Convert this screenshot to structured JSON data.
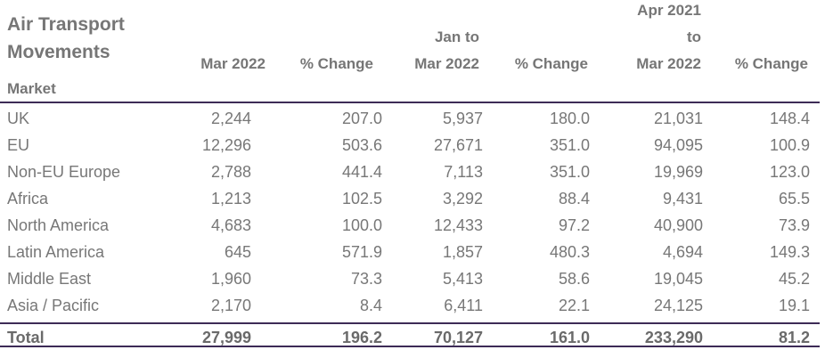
{
  "title_line1": "Air Transport",
  "title_line2": "Movements",
  "headers": {
    "mar2022": "Mar 2022",
    "pct1": "% Change",
    "jan_line1": "Jan to",
    "jan_line2": "Mar 2022",
    "pct2": "% Change",
    "apr_line1": "Apr 2021",
    "apr_line2": "to",
    "apr_line3": "Mar 2022",
    "pct3": "% Change"
  },
  "market_label": "Market",
  "rows": [
    {
      "market": "UK",
      "mar": "2,244",
      "pct1": "207.0",
      "jan": "5,937",
      "pct2": "180.0",
      "apr": "21,031",
      "pct3": "148.4"
    },
    {
      "market": "EU",
      "mar": "12,296",
      "pct1": "503.6",
      "jan": "27,671",
      "pct2": "351.0",
      "apr": "94,095",
      "pct3": "100.9"
    },
    {
      "market": "Non-EU Europe",
      "mar": "2,788",
      "pct1": "441.4",
      "jan": "7,113",
      "pct2": "351.0",
      "apr": "19,969",
      "pct3": "123.0"
    },
    {
      "market": "Africa",
      "mar": "1,213",
      "pct1": "102.5",
      "jan": "3,292",
      "pct2": "88.4",
      "apr": "9,431",
      "pct3": "65.5"
    },
    {
      "market": "North America",
      "mar": "4,683",
      "pct1": "100.0",
      "jan": "12,433",
      "pct2": "97.2",
      "apr": "40,900",
      "pct3": "73.9"
    },
    {
      "market": "Latin America",
      "mar": "645",
      "pct1": "571.9",
      "jan": "1,857",
      "pct2": "480.3",
      "apr": "4,694",
      "pct3": "149.3"
    },
    {
      "market": "Middle East",
      "mar": "1,960",
      "pct1": "73.3",
      "jan": "5,413",
      "pct2": "58.6",
      "apr": "19,045",
      "pct3": "45.2"
    },
    {
      "market": "Asia / Pacific",
      "mar": "2,170",
      "pct1": "8.4",
      "jan": "6,411",
      "pct2": "22.1",
      "apr": "24,125",
      "pct3": "19.1"
    }
  ],
  "total": {
    "market": "Total",
    "mar": "27,999",
    "pct1": "196.2",
    "jan": "70,127",
    "pct2": "161.0",
    "apr": "233,290",
    "pct3": "81.2"
  }
}
